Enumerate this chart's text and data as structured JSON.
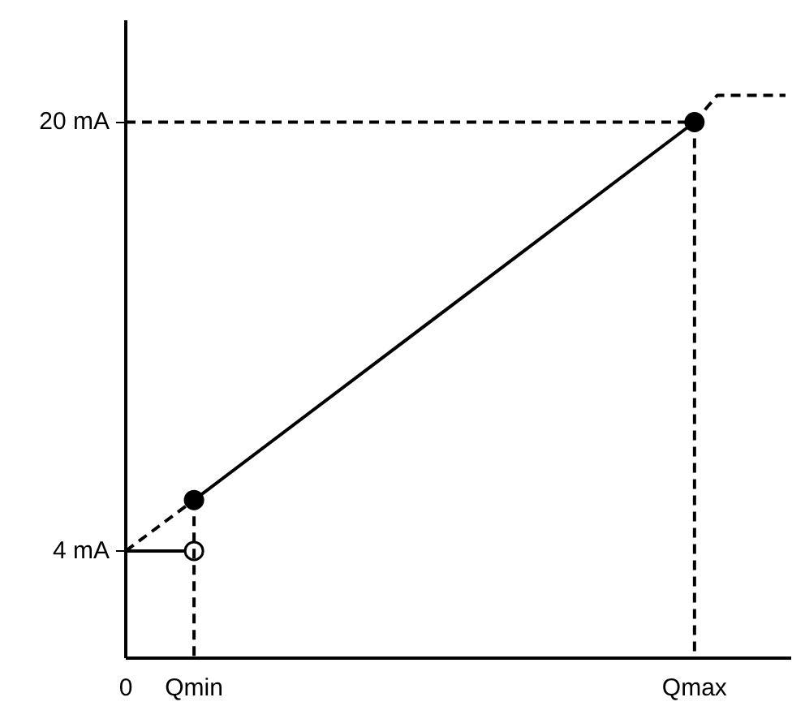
{
  "chart_data": {
    "type": "line",
    "categories": [
      "0",
      null,
      null,
      "Qmin",
      null,
      null,
      null,
      null,
      null,
      null,
      null,
      null,
      null,
      null,
      null,
      null,
      null,
      null,
      null,
      null,
      null,
      null,
      null,
      null,
      null,
      "Qmax",
      null,
      null,
      null,
      null
    ],
    "ylim": [
      0,
      23.8
    ],
    "yticks": [
      {
        "value": 4,
        "label": "4 mA"
      },
      {
        "value": 20,
        "label": "20 mA"
      }
    ],
    "grid": false,
    "series": [
      {
        "color": "#000000",
        "x": [
          "Qmin",
          "Qmax"
        ],
        "values": [
          5.9,
          20
        ],
        "marker": "circle",
        "line_style": "solid"
      },
      {
        "color": "#000000",
        "x": [
          "0",
          "Qmin"
        ],
        "values": [
          4,
          4
        ],
        "line_style": "solid"
      },
      {
        "type": "scatter",
        "color": "#000000",
        "x": [
          "Qmin"
        ],
        "values": [
          4
        ],
        "marker": "circle"
      },
      {
        "color": "#000000",
        "x": [
          "0",
          "Qmin"
        ],
        "values": [
          4,
          5.9
        ],
        "line_style": "dashed"
      },
      {
        "color": "#000000",
        "values": [
          null,
          null,
          null,
          null,
          null,
          null,
          null,
          null,
          null,
          null,
          null,
          null,
          null,
          null,
          null,
          null,
          null,
          null,
          null,
          null,
          null,
          null,
          null,
          null,
          null,
          20,
          21,
          21,
          21,
          21
        ],
        "line_style": "dashed"
      },
      {
        "color": "#000000",
        "x": [
          "0",
          "Qmax"
        ],
        "values": [
          20,
          20
        ],
        "line_style": "dashed"
      },
      {
        "color": "#000000",
        "x": [
          "Qmax",
          "Qmax"
        ],
        "values": [
          20,
          0
        ],
        "line_style": "dashed"
      },
      {
        "color": "#000000",
        "x": [
          "Qmin",
          "Qmin"
        ],
        "values": [
          5.9,
          0
        ],
        "line_style": "dashed"
      }
    ]
  }
}
